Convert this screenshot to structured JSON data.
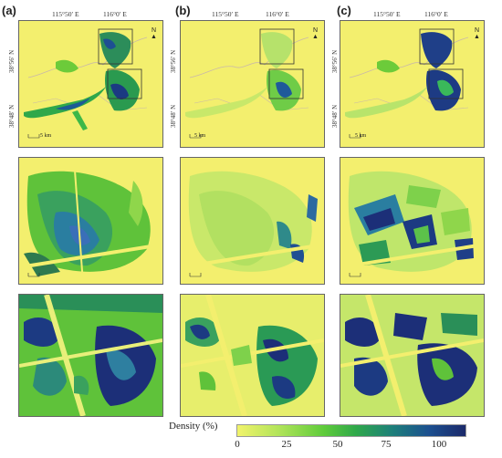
{
  "panels": [
    {
      "letter": "(a)"
    },
    {
      "letter": "(b)"
    },
    {
      "letter": "(c)"
    }
  ],
  "coords": {
    "lon1": "115°50′ E",
    "lon2": "116°0′ E",
    "lat1": "38°56′ N",
    "lat2": "38°48′ N"
  },
  "north_label": "N",
  "scale_label": "5 km",
  "legend": {
    "title": "Density (%)",
    "ticks": [
      "0",
      "25",
      "50",
      "75",
      "100"
    ],
    "colors": [
      "#f1f36b",
      "#b2e45a",
      "#5ecb3a",
      "#2fa84a",
      "#1d7f7a",
      "#1c4f8f",
      "#1c2a6b"
    ]
  }
}
